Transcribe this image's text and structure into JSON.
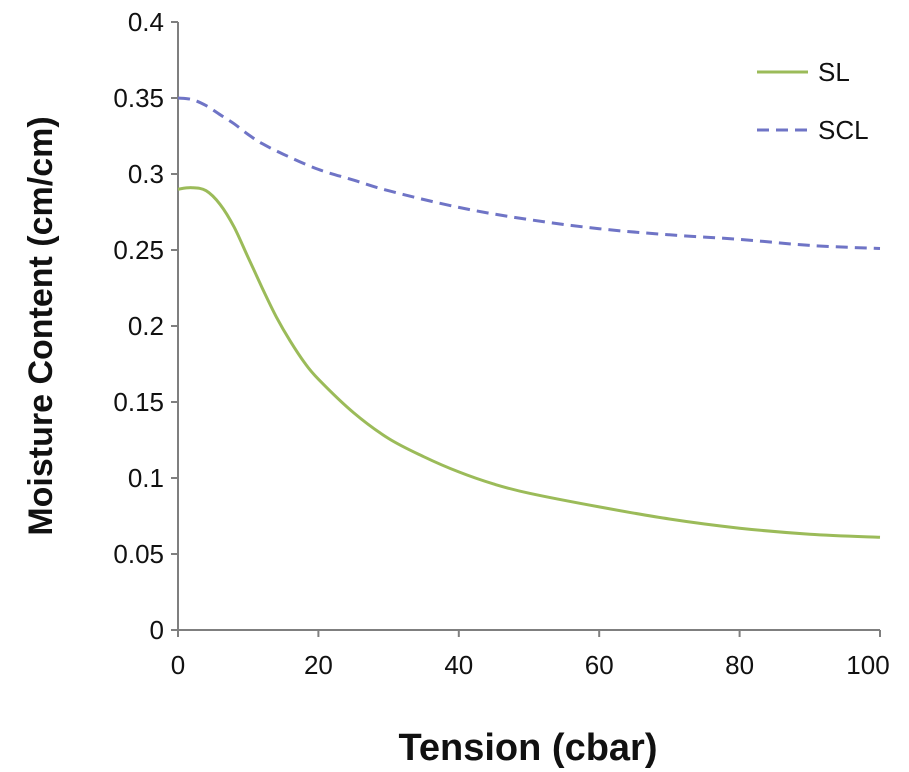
{
  "chart_data": {
    "type": "line",
    "xlabel": "Tension (cbar)",
    "ylabel": "Moisture Content (cm/cm)",
    "xlim": [
      0,
      100
    ],
    "ylim": [
      0,
      0.4
    ],
    "xticks": [
      0,
      20,
      40,
      60,
      80,
      100
    ],
    "xtick_labels": [
      "0",
      "20",
      "40",
      "60",
      "80",
      "100"
    ],
    "yticks": [
      0,
      0.05,
      0.1,
      0.15,
      0.2,
      0.25,
      0.3,
      0.35,
      0.4
    ],
    "ytick_labels": [
      "0",
      "0.05",
      "0.1",
      "0.15",
      "0.2",
      "0.25",
      "0.3",
      "0.35",
      "0.4"
    ],
    "grid": false,
    "legend_position": "top-right",
    "series": [
      {
        "name": "SL",
        "color": "#9bbb59",
        "style": "solid",
        "x": [
          0,
          2,
          4,
          6,
          8,
          10,
          12,
          14,
          16,
          18,
          20,
          25,
          30,
          35,
          40,
          45,
          50,
          60,
          70,
          80,
          90,
          100
        ],
        "y": [
          0.29,
          0.291,
          0.289,
          0.28,
          0.265,
          0.245,
          0.225,
          0.206,
          0.19,
          0.176,
          0.165,
          0.143,
          0.126,
          0.114,
          0.104,
          0.096,
          0.09,
          0.081,
          0.073,
          0.067,
          0.063,
          0.061
        ]
      },
      {
        "name": "SCL",
        "color": "#6f74c6",
        "style": "dashed",
        "x": [
          0,
          2,
          4,
          6,
          8,
          10,
          12,
          15,
          20,
          25,
          30,
          40,
          50,
          60,
          70,
          80,
          90,
          100
        ],
        "y": [
          0.35,
          0.349,
          0.345,
          0.339,
          0.333,
          0.326,
          0.32,
          0.313,
          0.303,
          0.296,
          0.289,
          0.278,
          0.27,
          0.264,
          0.26,
          0.257,
          0.253,
          0.251
        ]
      }
    ]
  }
}
